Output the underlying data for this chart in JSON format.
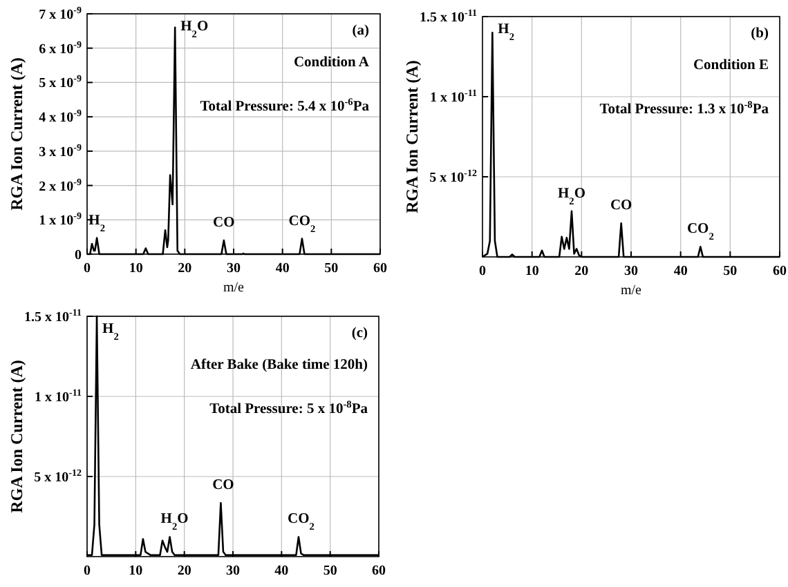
{
  "chart_data": [
    {
      "type": "line",
      "xlabel": "m/e",
      "ylabel": "RGA Ion Current (A)",
      "grid": true,
      "xlim": [
        0,
        60
      ],
      "xticks": [
        0,
        10,
        20,
        30,
        40,
        50,
        60
      ],
      "ylim": [
        0,
        7e-09
      ],
      "yticks": [
        0,
        {
          "value": 1e-09,
          "label": "1 x 10$^{-9}$"
        },
        {
          "value": 2e-09,
          "label": "2 x 10$^{-9}$"
        },
        {
          "value": 3e-09,
          "label": "3 x 10$^{-9}$"
        },
        {
          "value": 4e-09,
          "label": "4 x 10$^{-9}$"
        },
        {
          "value": 5e-09,
          "label": "5 x 10$^{-9}$"
        },
        {
          "value": 6e-09,
          "label": "6 x 10$^{-9}$"
        },
        {
          "value": 7e-09,
          "label": "7 x 10$^{-9}$"
        }
      ],
      "series": [
        {
          "color": "#000000",
          "x": [
            0,
            0.6,
            1,
            1.4,
            1.6,
            2,
            2.5,
            3,
            11.5,
            12,
            12.5,
            15.5,
            16,
            16.4,
            16.6,
            17,
            17.5,
            18,
            18.5,
            19,
            27.5,
            28,
            28.5,
            31.8,
            32,
            32.2,
            43.5,
            44,
            44.5,
            60
          ],
          "values": [
            0,
            0,
            3e-10,
            1e-10,
            1e-10,
            4.7e-10,
            0,
            0,
            0,
            1.7e-10,
            0,
            0,
            7e-10,
            2e-10,
            4e-10,
            2.3e-09,
            1.45e-09,
            6.6e-09,
            1e-10,
            0,
            0,
            4e-10,
            0,
            0,
            2e-11,
            0,
            0,
            4.5e-10,
            0,
            0
          ]
        }
      ],
      "annotations": [
        "(a)",
        "Condition A",
        "Total Pressure: 5.4 x 10$^{-6}$Pa",
        {
          "text": "H$_{2}$",
          "x": 2,
          "y": 4.7e-10
        },
        {
          "text": "H$_{2}$O",
          "x": 18,
          "y": 6.6e-09
        },
        {
          "text": "CO",
          "x": 28,
          "y": 4e-10
        },
        {
          "text": "CO$_{2}$",
          "x": 44,
          "y": 4.5e-10
        }
      ]
    },
    {
      "type": "line",
      "xlabel": "m/e",
      "ylabel": "RGA Ion Current (A)",
      "grid": true,
      "xlim": [
        0,
        60
      ],
      "xticks": [
        0,
        10,
        20,
        30,
        40,
        50,
        60
      ],
      "ylim": [
        0,
        1.5e-11
      ],
      "yticks": [
        {
          "value": 5e-12,
          "label": "5 x 10$^{-12}$"
        },
        {
          "value": 1e-11,
          "label": "1 x 10$^{-11}$"
        },
        {
          "value": 1.5e-11,
          "label": "1.5 x 10$^{-11}$"
        }
      ],
      "series": [
        {
          "color": "#000000",
          "x": [
            0,
            1,
            1.5,
            2,
            2.5,
            3,
            5.5,
            6,
            6.5,
            11.5,
            12,
            12.5,
            15.5,
            16,
            16.5,
            17,
            17.5,
            18,
            18.5,
            19,
            19.5,
            20,
            27.5,
            28,
            28.5,
            43.5,
            44,
            44.5,
            60
          ],
          "values": [
            0,
            2e-13,
            1e-12,
            1.4e-11,
            1e-12,
            0,
            0,
            1.5e-13,
            0,
            0,
            4e-13,
            0,
            0,
            1.26e-12,
            5e-13,
            1.2e-12,
            5e-13,
            2.85e-12,
            2e-13,
            5e-13,
            1e-13,
            0,
            0,
            2.1e-12,
            0,
            0,
            6.3e-13,
            0,
            0
          ]
        }
      ],
      "annotations": [
        "(b)",
        "Condition E",
        "Total Pressure: 1.3 x 10$^{-8}$Pa",
        {
          "text": "H$_{2}$",
          "x": 2,
          "y": 1.4e-11
        },
        {
          "text": "H$_{2}$O",
          "x": 18,
          "y": 2.85e-12
        },
        {
          "text": "CO",
          "x": 28,
          "y": 2.1e-12
        },
        {
          "text": "CO$_{2}$",
          "x": 44,
          "y": 6.3e-13
        }
      ]
    },
    {
      "type": "line",
      "ylabel": "RGA Ion Current (A)",
      "grid": true,
      "xlim": [
        0,
        60
      ],
      "xticks": [
        0,
        10,
        20,
        30,
        40,
        50,
        60
      ],
      "ylim": [
        0,
        1.5e-11
      ],
      "yticks": [
        {
          "value": 5e-12,
          "label": "5 x 10$^{-12}$"
        },
        {
          "value": 1e-11,
          "label": "1 x 10$^{-11}$"
        },
        {
          "value": 1.5e-11,
          "label": "1.5 x 10$^{-11}$"
        }
      ],
      "series": [
        {
          "color": "#000000",
          "x": [
            0,
            1,
            1.5,
            2,
            2.5,
            3,
            6,
            9,
            11,
            11.5,
            12,
            12.5,
            13,
            15,
            15.5,
            16,
            16.5,
            17,
            17.5,
            18,
            18.5,
            20,
            27,
            27.5,
            28,
            28.5,
            30,
            43,
            43.5,
            44,
            44.5,
            50,
            60
          ],
          "values": [
            1e-13,
            1e-13,
            2e-12,
            1.5e-11,
            2e-12,
            1e-13,
            1e-13,
            1e-13,
            1e-13,
            1.1e-12,
            3e-13,
            2e-13,
            1e-13,
            1e-13,
            1e-12,
            6e-13,
            3e-13,
            1.23e-12,
            3e-13,
            1e-13,
            1e-13,
            1e-13,
            1e-13,
            3.35e-12,
            3e-13,
            1e-13,
            1e-13,
            1e-13,
            1.23e-12,
            2e-13,
            1e-13,
            1e-13,
            1e-13
          ]
        }
      ],
      "annotations": [
        "(c)",
        "After Bake (Bake time 120h)",
        "Total Pressure: 5 x 10$^{-8}$Pa",
        {
          "text": "H$_{2}$",
          "x": 2,
          "y": 1.5e-11
        },
        {
          "text": "H$_{2}$O",
          "x": 18,
          "y": 1.23e-12
        },
        {
          "text": "CO",
          "x": 28,
          "y": 3.35e-12
        },
        {
          "text": "CO$_{2}$",
          "x": 44,
          "y": 1.23e-12
        }
      ]
    }
  ]
}
